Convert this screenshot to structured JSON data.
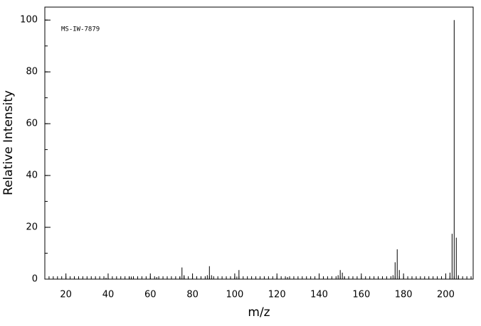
{
  "chart_data": {
    "type": "stem",
    "annotation": "MS-IW-7879",
    "xlabel": "m/z",
    "ylabel": "Relative Intensity",
    "x": [
      39,
      50,
      51,
      63,
      74,
      75,
      76,
      87,
      88,
      89,
      100,
      101,
      102,
      125,
      126,
      149,
      150,
      151,
      152,
      175,
      176,
      177,
      178,
      202,
      203,
      204,
      205,
      206
    ],
    "values": [
      0.5,
      1,
      1,
      0.8,
      1,
      4.5,
      1.5,
      1.5,
      5,
      1.5,
      1,
      1,
      3.5,
      0.8,
      0.8,
      1.5,
      3.5,
      2.5,
      1,
      1.5,
      6.5,
      11.5,
      3.5,
      2.5,
      17.5,
      100,
      16,
      1.5
    ],
    "color": "#000000",
    "xlim": [
      10,
      213
    ],
    "ylim": [
      0,
      105
    ],
    "xticks": [
      20,
      40,
      60,
      80,
      100,
      120,
      140,
      160,
      180,
      200
    ],
    "yticks": [
      0,
      20,
      40,
      60,
      80,
      100
    ],
    "xminor_step": 2,
    "yminor_step": 10
  }
}
